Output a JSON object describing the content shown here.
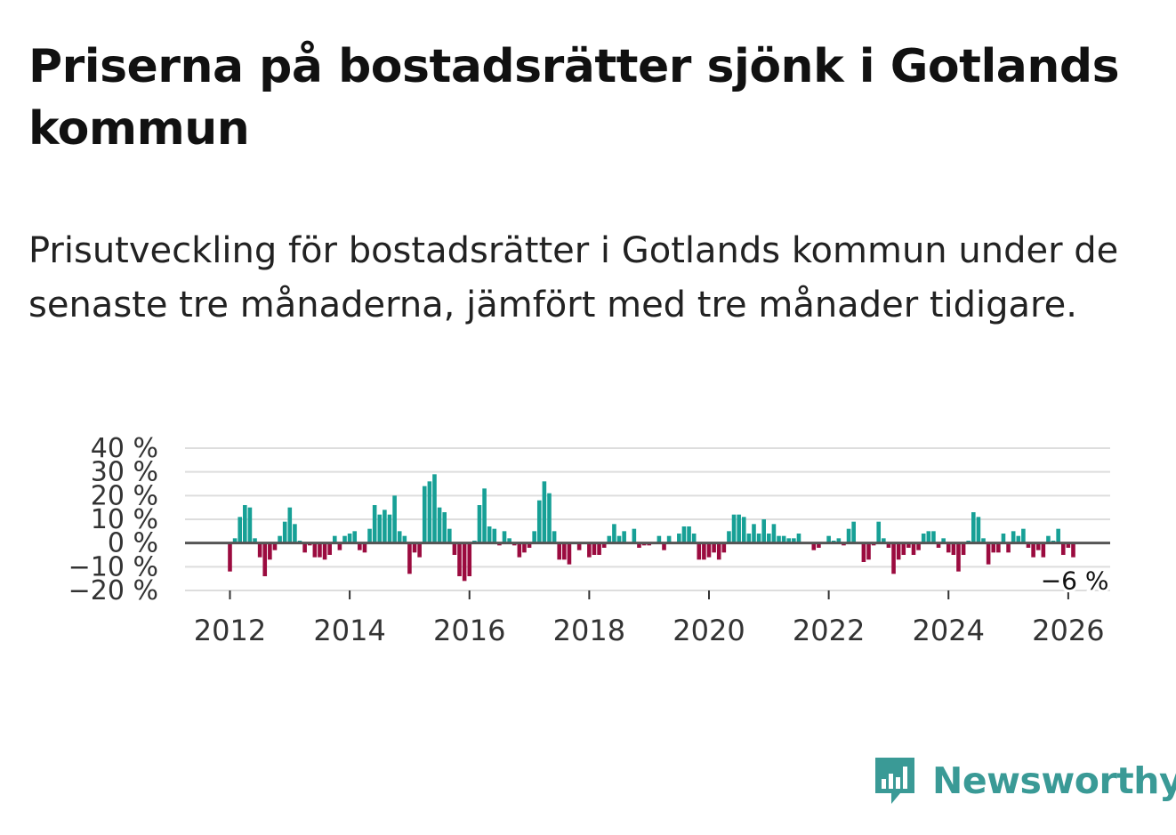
{
  "title": "Priserna på bostadsrätter sjönk i Gotlands kommun",
  "subtitle": "Prisutveckling för bostadsrätter i Gotlands kommun under de senaste tre månaderna, jämfört med tre månader tidigare.",
  "brand": {
    "name": "Newsworthy",
    "logo_icon": "bar-chart-icon",
    "color": "#3a9a96"
  },
  "colors": {
    "positive": "#17a096",
    "negative": "#9b0b3f",
    "grid": "#dddddd",
    "zero": "#555555"
  },
  "chart_data": {
    "type": "bar",
    "title": "Prisutveckling för bostadsrätter i Gotlands kommun",
    "xlabel": "",
    "ylabel": "",
    "unit": "%",
    "ylim": [
      -20,
      40
    ],
    "yticks": [
      -20,
      -10,
      0,
      10,
      20,
      30,
      40
    ],
    "ytick_labels": [
      "−20 %",
      "−10 %",
      "0 %",
      "10 %",
      "20 %",
      "30 %",
      "40 %"
    ],
    "xlim": [
      2011.25,
      2026.7
    ],
    "xticks": [
      2012,
      2014,
      2016,
      2018,
      2020,
      2022,
      2024,
      2026
    ],
    "xtick_labels": [
      "2012",
      "2014",
      "2016",
      "2018",
      "2020",
      "2022",
      "2024",
      "2026"
    ],
    "start_year": 2012,
    "months_per_bar": 1,
    "last_value_label": "−6 %",
    "values": [
      -12,
      2,
      11,
      16,
      15,
      2,
      -6,
      -14,
      -7,
      -3,
      3,
      9,
      15,
      8,
      1,
      -4,
      -1,
      -6,
      -6,
      -7,
      -5,
      3,
      -3,
      3,
      4,
      5,
      -3,
      -4,
      6,
      16,
      12,
      14,
      12,
      20,
      5,
      3,
      -13,
      -4,
      -6,
      24,
      26,
      29,
      15,
      13,
      6,
      -5,
      -14,
      -16,
      -14,
      1,
      16,
      23,
      7,
      6,
      -1,
      5,
      2,
      -1,
      -6,
      -4,
      -2,
      5,
      18,
      26,
      21,
      5,
      -7,
      -7,
      -9,
      0,
      -3,
      0,
      -6,
      -5,
      -5,
      -2,
      3,
      8,
      3,
      5,
      0,
      6,
      -2,
      -1,
      -1,
      0,
      3,
      -3,
      3,
      0,
      4,
      7,
      7,
      4,
      -7,
      -7,
      -6,
      -4,
      -7,
      -4,
      5,
      12,
      12,
      11,
      4,
      8,
      4,
      10,
      4,
      8,
      3,
      3,
      2,
      2,
      4,
      0,
      0,
      -3,
      -2,
      0,
      3,
      1,
      2,
      -1,
      6,
      9,
      0,
      -8,
      -7,
      -1,
      9,
      2,
      -2,
      -13,
      -7,
      -5,
      -2,
      -5,
      -3,
      4,
      5,
      5,
      -2,
      2,
      -4,
      -5,
      -12,
      -5,
      1,
      13,
      11,
      2,
      -9,
      -4,
      -4,
      4,
      -4,
      5,
      3,
      6,
      -2,
      -6,
      -3,
      -6,
      3,
      1,
      6,
      -5,
      -2,
      -6
    ]
  }
}
